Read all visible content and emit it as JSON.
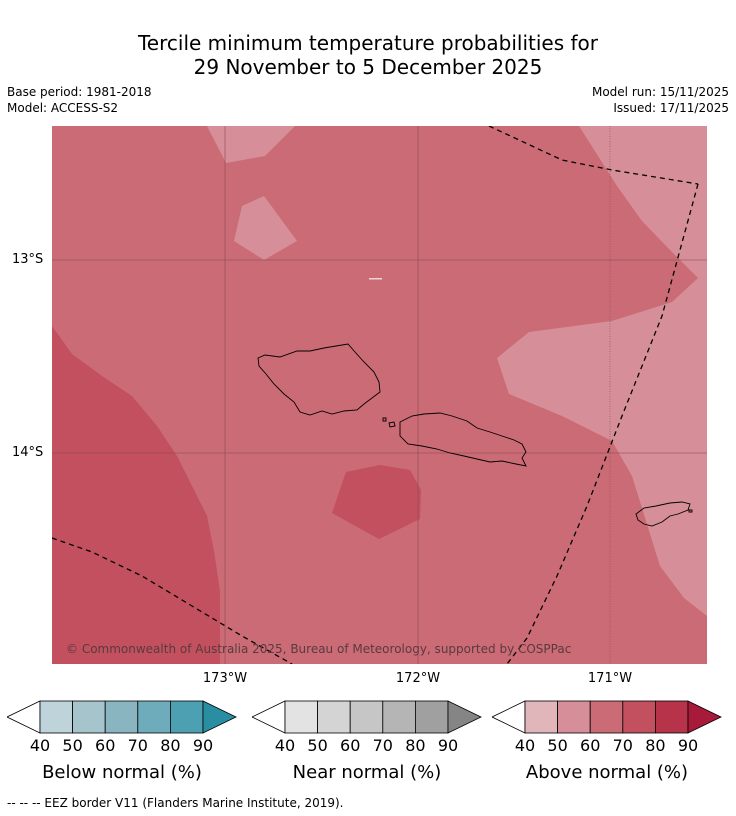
{
  "title": {
    "line1": "Tercile minimum temperature probabilities for",
    "line2": "29 November to 5 December 2025"
  },
  "meta": {
    "base_period": "Base period: 1981-2018",
    "model": "Model: ACCESS-S2",
    "model_run": "Model run: 15/11/2025",
    "issued": "Issued: 17/11/2025"
  },
  "map": {
    "copyright": "© Commonwealth of Australia 2025, Bureau of Meteorology, supported by COSPPac",
    "lat_labels": [
      "13°S",
      "14°S"
    ],
    "lon_labels": [
      "173°W",
      "172°W",
      "171°W"
    ]
  },
  "legend": {
    "ticks": [
      "40",
      "50",
      "60",
      "70",
      "80",
      "90"
    ],
    "below": {
      "caption": "Below normal (%)",
      "colors": [
        "#bfd3da",
        "#a6c4cb",
        "#89b5c1",
        "#6eacbc",
        "#4d9fb2",
        "#2a8ea2"
      ]
    },
    "near": {
      "caption": "Near normal (%)",
      "colors": [
        "#e3e3e3",
        "#d4d4d4",
        "#c6c6c6",
        "#b5b5b5",
        "#a0a0a0",
        "#858585"
      ]
    },
    "above": {
      "caption": "Above normal (%)",
      "colors": [
        "#e0b6bb",
        "#d68f98",
        "#cb6b75",
        "#c2505e",
        "#b7334a",
        "#a81a3a"
      ]
    }
  },
  "footer": "-- -- -- EEZ border V11 (Flanders Marine Institute, 2019)."
}
